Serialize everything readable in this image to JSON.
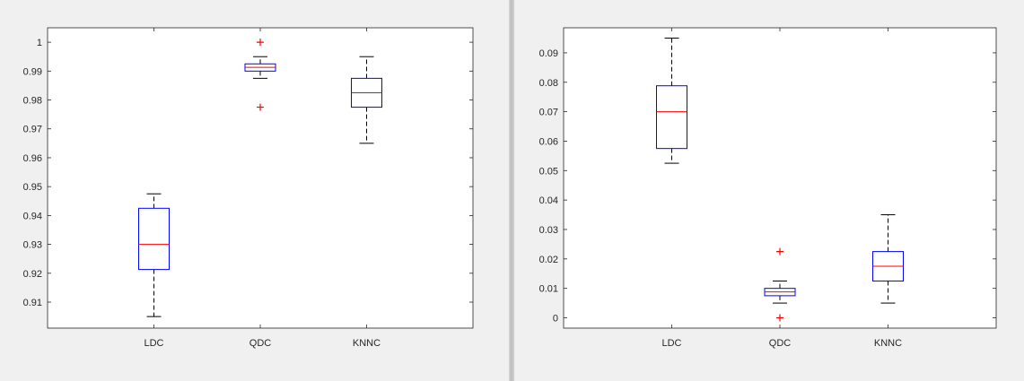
{
  "chart_data": [
    {
      "type": "box",
      "title": "",
      "xlabel": "",
      "ylabel": "",
      "categories": [
        "LDC",
        "QDC",
        "KNNC"
      ],
      "ylim": [
        0.901,
        1.005
      ],
      "yticks": [
        0.91,
        0.92,
        0.93,
        0.94,
        0.95,
        0.96,
        0.97,
        0.98,
        0.99,
        1
      ],
      "ytick_labels": [
        "0.91",
        "0.92",
        "0.93",
        "0.94",
        "0.95",
        "0.96",
        "0.97",
        "0.98",
        "0.99",
        "1"
      ],
      "boxes": [
        {
          "category": "LDC",
          "whisker_low": 0.905,
          "q1": 0.9213,
          "median": 0.93,
          "q3": 0.9425,
          "whisker_high": 0.9475,
          "outliers": []
        },
        {
          "category": "QDC",
          "whisker_low": 0.9875,
          "q1": 0.99,
          "median": 0.9913,
          "q3": 0.9925,
          "whisker_high": 0.995,
          "outliers": [
            1.0,
            0.9775
          ]
        },
        {
          "category": "KNNC",
          "whisker_low": 0.965,
          "q1": 0.9775,
          "median": 0.9825,
          "q3": 0.9875,
          "whisker_high": 0.995,
          "outliers": []
        }
      ],
      "colors": {
        "box": "#0000ff",
        "median": "#ff0000",
        "whisker": "#000000",
        "outlier": "#ff0000"
      }
    },
    {
      "type": "box",
      "title": "",
      "xlabel": "",
      "ylabel": "",
      "categories": [
        "LDC",
        "QDC",
        "KNNC"
      ],
      "ylim": [
        -0.0035,
        0.0985
      ],
      "yticks": [
        0,
        0.01,
        0.02,
        0.03,
        0.04,
        0.05,
        0.06,
        0.07,
        0.08,
        0.09
      ],
      "ytick_labels": [
        "0",
        "0.01",
        "0.02",
        "0.03",
        "0.04",
        "0.05",
        "0.06",
        "0.07",
        "0.08",
        "0.09"
      ],
      "boxes": [
        {
          "category": "LDC",
          "whisker_low": 0.0525,
          "q1": 0.0575,
          "median": 0.07,
          "q3": 0.0788,
          "whisker_high": 0.095,
          "outliers": []
        },
        {
          "category": "QDC",
          "whisker_low": 0.005,
          "q1": 0.0075,
          "median": 0.0088,
          "q3": 0.01,
          "whisker_high": 0.0125,
          "outliers": [
            0.0225,
            0.0
          ]
        },
        {
          "category": "KNNC",
          "whisker_low": 0.005,
          "q1": 0.0125,
          "median": 0.0175,
          "q3": 0.0225,
          "whisker_high": 0.035,
          "outliers": []
        }
      ],
      "colors": {
        "box": "#0000ff",
        "median": "#ff0000",
        "whisker": "#000000",
        "outlier": "#ff0000"
      }
    }
  ]
}
